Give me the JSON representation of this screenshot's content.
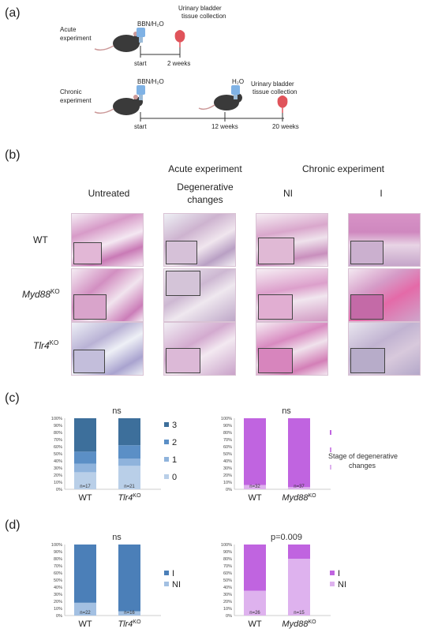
{
  "panels": {
    "a": "(a)",
    "b": "(b)",
    "c": "(c)",
    "d": "(d)"
  },
  "panel_a": {
    "acute_label_1": "Acute",
    "acute_label_2": "experiment",
    "acute_reagent": "BBN/H₂O",
    "acute_collection_1": "Urinary bladder",
    "acute_collection_2": "tissue collection",
    "acute_start": "start",
    "acute_end": "2 weeks",
    "chronic_label_1": "Chronic",
    "chronic_label_2": "experiment",
    "chronic_reagent": "BBN/H₂O",
    "chronic_water": "H₂O",
    "chronic_collection_1": "Urinary bladder",
    "chronic_collection_2": "tissue collection",
    "chronic_start": "start",
    "chronic_mid": "12 weeks",
    "chronic_end": "20 weeks"
  },
  "panel_b": {
    "group_acute": "Acute experiment",
    "group_chronic": "Chronic experiment",
    "col_untreated": "Untreated",
    "col_degenerative_1": "Degenerative",
    "col_degenerative_2": "changes",
    "col_ni": "NI",
    "col_i": "I",
    "row_wt": "WT",
    "row_myd88": "Myd88",
    "row_myd88_sup": "KO",
    "row_tlr4": "Tlr4",
    "row_tlr4_sup": "KO"
  },
  "panel_c_legend": {
    "stage_title_1": "Stage of degenerative",
    "stage_title_2": "changes"
  },
  "colors": {
    "blue3": "#3d6f9b",
    "blue2": "#5b8fc6",
    "blue1": "#8fb3dc",
    "blue0": "#b9cfe8",
    "purple3": "#c064e0",
    "purple2": "#cf89e6",
    "purple1": "#deb2ee",
    "d_blue_I": "#4b7fb8",
    "d_blue_NI": "#a3c0e2",
    "d_purple_I": "#c064e0",
    "d_purple_NI": "#deb2ee"
  },
  "chart_data": [
    {
      "type": "bar",
      "stacked": true,
      "categories": [
        "WT",
        "Tlr4KO"
      ],
      "n_labels": [
        "n=17",
        "n=21"
      ],
      "significance": "ns",
      "y_ticks": [
        "0%",
        "10%",
        "20%",
        "30%",
        "40%",
        "50%",
        "60%",
        "70%",
        "80%",
        "90%",
        "100%"
      ],
      "ylim": [
        0,
        100
      ],
      "series": [
        {
          "name": "0",
          "values": [
            24,
            33
          ]
        },
        {
          "name": "1",
          "values": [
            12,
            10
          ]
        },
        {
          "name": "2",
          "values": [
            17,
            19
          ]
        },
        {
          "name": "3",
          "values": [
            47,
            38
          ]
        }
      ]
    },
    {
      "type": "bar",
      "stacked": true,
      "categories": [
        "WT",
        "Myd88KO"
      ],
      "n_labels": [
        "n=32",
        "n=37"
      ],
      "significance": "ns",
      "y_ticks": [
        "0%",
        "10%",
        "20%",
        "30%",
        "40%",
        "50%",
        "60%",
        "70%",
        "80%",
        "90%",
        "100%"
      ],
      "ylim": [
        0,
        100
      ],
      "series": [
        {
          "name": "1",
          "values": [
            6,
            3
          ]
        },
        {
          "name": "2",
          "values": [
            0,
            0
          ]
        },
        {
          "name": "3",
          "values": [
            94,
            97
          ]
        }
      ]
    },
    {
      "type": "bar",
      "stacked": true,
      "categories": [
        "WT",
        "Tlr4KO"
      ],
      "n_labels": [
        "n=22",
        "n=16"
      ],
      "significance": "ns",
      "y_ticks": [
        "0%",
        "10%",
        "20%",
        "30%",
        "40%",
        "50%",
        "60%",
        "70%",
        "80%",
        "90%",
        "100%"
      ],
      "ylim": [
        0,
        100
      ],
      "series": [
        {
          "name": "NI",
          "values": [
            18,
            6
          ]
        },
        {
          "name": "I",
          "values": [
            82,
            94
          ]
        }
      ]
    },
    {
      "type": "bar",
      "stacked": true,
      "categories": [
        "WT",
        "Myd88KO"
      ],
      "n_labels": [
        "n=26",
        "n=15"
      ],
      "significance": "p=0.009",
      "y_ticks": [
        "0%",
        "10%",
        "20%",
        "30%",
        "40%",
        "50%",
        "60%",
        "70%",
        "80%",
        "90%",
        "100%"
      ],
      "ylim": [
        0,
        100
      ],
      "series": [
        {
          "name": "NI",
          "values": [
            35,
            80
          ]
        },
        {
          "name": "I",
          "values": [
            65,
            20
          ]
        }
      ]
    }
  ]
}
